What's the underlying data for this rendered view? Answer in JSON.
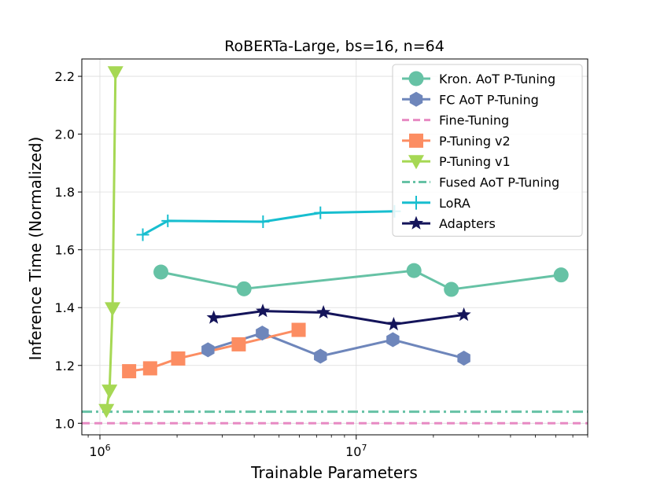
{
  "chart_data": {
    "type": "line",
    "title": "RoBERTa-Large, bs=16, n=64",
    "xlabel": "Trainable Parameters",
    "ylabel": "Inference Time (Normalized)",
    "xscale": "log",
    "xlim": [
      850000,
      80000000
    ],
    "ylim": [
      0.96,
      2.26
    ],
    "grid": true,
    "legend_position": "top-right",
    "x_ticks": [
      {
        "value": 1000000,
        "base": "10",
        "exp": "6"
      },
      {
        "value": 10000000,
        "base": "10",
        "exp": "7"
      }
    ],
    "y_ticks": [
      {
        "value": 1.0,
        "label": "1.0"
      },
      {
        "value": 1.2,
        "label": "1.2"
      },
      {
        "value": 1.4,
        "label": "1.4"
      },
      {
        "value": 1.6,
        "label": "1.6"
      },
      {
        "value": 1.8,
        "label": "1.8"
      },
      {
        "value": 2.0,
        "label": "2.0"
      },
      {
        "value": 2.2,
        "label": "2.2"
      }
    ],
    "series": [
      {
        "name": "Kron. AoT P-Tuning",
        "color": "#66c2a5",
        "marker": "circle",
        "dash": "solid",
        "points": [
          [
            1730000,
            1.523
          ],
          [
            3650000,
            1.465
          ],
          [
            16800000,
            1.528
          ],
          [
            23500000,
            1.463
          ],
          [
            63000000,
            1.513
          ]
        ]
      },
      {
        "name": "FC AoT P-Tuning",
        "color": "#6e86bb",
        "marker": "hexagon",
        "dash": "solid",
        "points": [
          [
            2640000,
            1.254
          ],
          [
            4300000,
            1.312
          ],
          [
            7250000,
            1.232
          ],
          [
            13900000,
            1.289
          ],
          [
            26300000,
            1.225
          ]
        ]
      },
      {
        "name": "Fine-Tuning",
        "color": "#e78ac3",
        "marker": "none",
        "dash": "dashed",
        "hline": 1.0
      },
      {
        "name": "P-Tuning v2",
        "color": "#fc8d62",
        "marker": "square",
        "dash": "solid",
        "points": [
          [
            1300000,
            1.18
          ],
          [
            1570000,
            1.19
          ],
          [
            2020000,
            1.224
          ],
          [
            3480000,
            1.273
          ],
          [
            5960000,
            1.323
          ]
        ]
      },
      {
        "name": "P-Tuning v1",
        "color": "#a6d854",
        "marker": "triangle-down",
        "dash": "solid",
        "points": [
          [
            1060000,
            1.045
          ],
          [
            1090000,
            1.112
          ],
          [
            1120000,
            1.397
          ],
          [
            1150000,
            2.213
          ]
        ]
      },
      {
        "name": "Fused AoT P-Tuning",
        "color": "#66c2a5",
        "marker": "none",
        "dash": "dashdot",
        "hline": 1.04
      },
      {
        "name": "LoRA",
        "color": "#17becf",
        "marker": "plus",
        "dash": "solid",
        "points": [
          [
            1470000,
            1.652
          ],
          [
            1840000,
            1.7
          ],
          [
            4330000,
            1.697
          ],
          [
            7250000,
            1.728
          ],
          [
            14100000,
            1.733
          ]
        ]
      },
      {
        "name": "Adapters",
        "color": "#14145a",
        "marker": "star",
        "dash": "solid",
        "points": [
          [
            2780000,
            1.365
          ],
          [
            4320000,
            1.388
          ],
          [
            7450000,
            1.383
          ],
          [
            14000000,
            1.342
          ],
          [
            26300000,
            1.375
          ]
        ]
      }
    ]
  }
}
